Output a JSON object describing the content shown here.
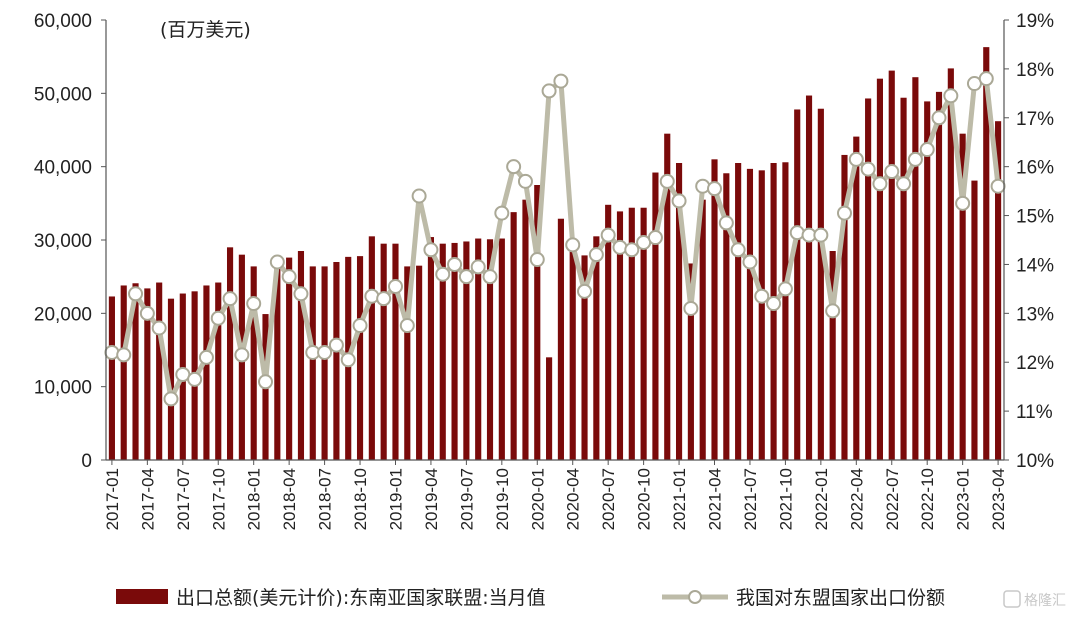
{
  "chart_data": {
    "type": "bar",
    "unit_label": "(百万美元)",
    "categories": [
      "2017-01",
      "2017-02",
      "2017-03",
      "2017-04",
      "2017-05",
      "2017-06",
      "2017-07",
      "2017-08",
      "2017-09",
      "2017-10",
      "2017-11",
      "2017-12",
      "2018-01",
      "2018-02",
      "2018-03",
      "2018-04",
      "2018-05",
      "2018-06",
      "2018-07",
      "2018-08",
      "2018-09",
      "2018-10",
      "2018-11",
      "2018-12",
      "2019-01",
      "2019-02",
      "2019-03",
      "2019-04",
      "2019-05",
      "2019-06",
      "2019-07",
      "2019-08",
      "2019-09",
      "2019-10",
      "2019-11",
      "2019-12",
      "2020-01",
      "2020-02",
      "2020-03",
      "2020-04",
      "2020-05",
      "2020-06",
      "2020-07",
      "2020-08",
      "2020-09",
      "2020-10",
      "2020-11",
      "2020-12",
      "2021-01",
      "2021-02",
      "2021-03",
      "2021-04",
      "2021-05",
      "2021-06",
      "2021-07",
      "2021-08",
      "2021-09",
      "2021-10",
      "2021-11",
      "2021-12",
      "2022-01",
      "2022-02",
      "2022-03",
      "2022-04",
      "2022-05",
      "2022-06",
      "2022-07",
      "2022-08",
      "2022-09",
      "2022-10",
      "2022-11",
      "2022-12",
      "2023-01",
      "2023-02",
      "2023-03",
      "2023-04"
    ],
    "x_tick_labels": [
      "2017-01",
      "2017-04",
      "2017-07",
      "2017-10",
      "2018-01",
      "2018-04",
      "2018-07",
      "2018-10",
      "2019-01",
      "2019-04",
      "2019-07",
      "2019-10",
      "2020-01",
      "2020-04",
      "2020-07",
      "2020-10",
      "2021-01",
      "2021-04",
      "2021-07",
      "2021-10",
      "2022-01",
      "2022-04",
      "2022-07",
      "2022-10",
      "2023-01",
      "2023-04"
    ],
    "series": [
      {
        "name": "出口总额(美元计价):东南亚国家联盟:当月值",
        "type": "bar",
        "axis": "left",
        "color": "#7a0a0a",
        "values": [
          22300,
          23800,
          24100,
          23400,
          24200,
          22000,
          22700,
          23000,
          23800,
          24200,
          29000,
          28000,
          26400,
          19900,
          27000,
          27600,
          28500,
          26400,
          26400,
          27000,
          27700,
          27800,
          30500,
          29500,
          29500,
          26400,
          26500,
          30400,
          29500,
          29600,
          29800,
          30200,
          30100,
          30200,
          33800,
          35500,
          37500,
          14000,
          32900,
          29900,
          27900,
          30500,
          34800,
          33900,
          34400,
          34400,
          39200,
          44500,
          40500,
          26800,
          35500,
          41000,
          39100,
          40500,
          39700,
          39500,
          40500,
          40600,
          47800,
          49700,
          47900,
          28500,
          41600,
          44100,
          49300,
          52000,
          53100,
          49400,
          52200,
          48900,
          50200,
          53400,
          44500,
          38100,
          56300,
          46200
        ]
      },
      {
        "name": "我国对东盟国家出口份额",
        "type": "line",
        "axis": "right",
        "color": "#bdbba8",
        "values": [
          12.2,
          12.15,
          13.4,
          13.0,
          12.7,
          11.25,
          11.75,
          11.65,
          12.1,
          12.9,
          13.3,
          12.15,
          13.2,
          11.6,
          14.05,
          13.75,
          13.4,
          12.2,
          12.2,
          12.35,
          12.05,
          12.75,
          13.35,
          13.3,
          13.55,
          12.75,
          15.4,
          14.3,
          13.8,
          14.0,
          13.75,
          13.95,
          13.75,
          15.05,
          16.0,
          15.7,
          14.1,
          17.55,
          17.75,
          14.4,
          13.45,
          14.2,
          14.6,
          14.35,
          14.3,
          14.45,
          14.55,
          15.7,
          15.3,
          13.1,
          15.6,
          15.55,
          14.85,
          14.3,
          14.05,
          13.35,
          13.2,
          13.5,
          14.65,
          14.6,
          14.6,
          13.05,
          15.05,
          16.15,
          15.95,
          15.65,
          15.9,
          15.65,
          16.15,
          16.35,
          17.0,
          17.45,
          15.25,
          17.7,
          17.8,
          15.6
        ]
      }
    ],
    "y_left": {
      "min": 0,
      "max": 60000,
      "tick_labels": [
        "0",
        "10,000",
        "20,000",
        "30,000",
        "40,000",
        "50,000",
        "60,000"
      ]
    },
    "y_right": {
      "min": 10,
      "max": 19,
      "tick_labels": [
        "10%",
        "11%",
        "12%",
        "13%",
        "14%",
        "15%",
        "16%",
        "17%",
        "18%",
        "19%"
      ]
    },
    "legend": {
      "placement": "bottom",
      "bar_label": "出口总额(美元计价):东南亚国家联盟:当月值",
      "line_label": "我国对东盟国家出口份额"
    },
    "grid": false
  },
  "watermark": "格隆汇"
}
